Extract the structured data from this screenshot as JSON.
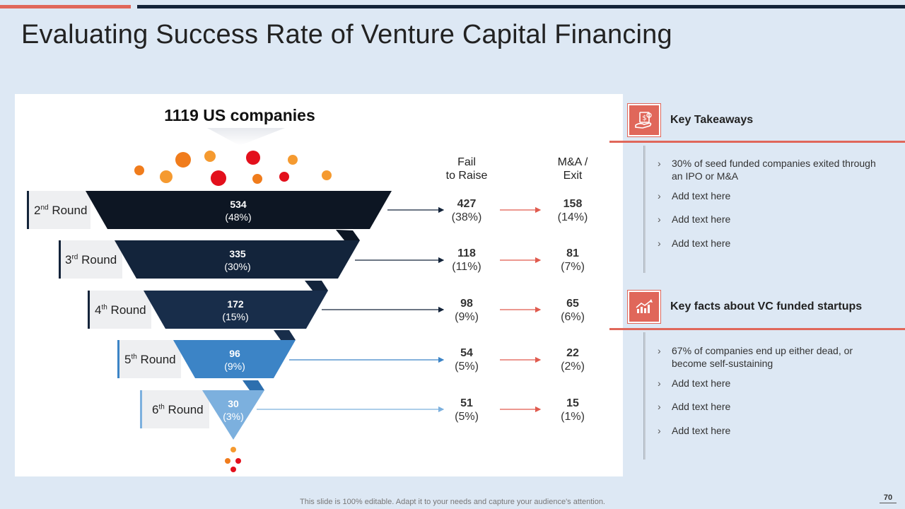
{
  "slide": {
    "title": "Evaluating Success Rate of Venture Capital Financing",
    "footer_note": "This slide is 100% editable. Adapt it to your needs and capture your audience's attention.",
    "page_number": "70",
    "colors": {
      "accent": "#e0675a",
      "navy": "#14243a",
      "background": "#dde8f4"
    }
  },
  "funnel": {
    "title": "1119 US companies",
    "headers": {
      "fail": "Fail\nto Raise",
      "exit": "M&A /\nExit"
    },
    "stages": [
      {
        "label_prefix": "2",
        "label_sup": "nd",
        "label_suffix": " Round",
        "value": "534",
        "pct": "(48%)",
        "fail": "427",
        "fail_pct": "(38%)",
        "exit": "158",
        "exit_pct": "(14%)",
        "color": "#0d1623"
      },
      {
        "label_prefix": "3",
        "label_sup": "rd",
        "label_suffix": " Round",
        "value": "335",
        "pct": "(30%)",
        "fail": "118",
        "fail_pct": "(11%)",
        "exit": "81",
        "exit_pct": "(7%)",
        "color": "#13243b"
      },
      {
        "label_prefix": "4",
        "label_sup": "th",
        "label_suffix": " Round",
        "value": "172",
        "pct": "(15%)",
        "fail": "98",
        "fail_pct": "(9%)",
        "exit": "65",
        "exit_pct": "(6%)",
        "color": "#182d4a"
      },
      {
        "label_prefix": "5",
        "label_sup": "th",
        "label_suffix": " Round",
        "value": "96",
        "pct": "(9%)",
        "fail": "54",
        "fail_pct": "(5%)",
        "exit": "22",
        "exit_pct": "(2%)",
        "color": "#3c84c6"
      },
      {
        "label_prefix": "6",
        "label_sup": "th",
        "label_suffix": " Round",
        "value": "30",
        "pct": "(3%)",
        "fail": "51",
        "fail_pct": "(5%)",
        "exit": "15",
        "exit_pct": "(1%)",
        "color": "#7cb0de"
      }
    ]
  },
  "takeaways": {
    "title": "Key Takeaways",
    "icon": "money-hand-icon",
    "items": [
      "30% of seed funded companies exited through an IPO or M&A",
      "Add text here",
      "Add text here",
      "Add text here"
    ]
  },
  "facts": {
    "title": "Key facts about VC funded startups",
    "icon": "growth-chart-icon",
    "items": [
      "67% of companies end up either dead, or become self-sustaining",
      "Add text here",
      "Add text here",
      "Add text here"
    ]
  }
}
